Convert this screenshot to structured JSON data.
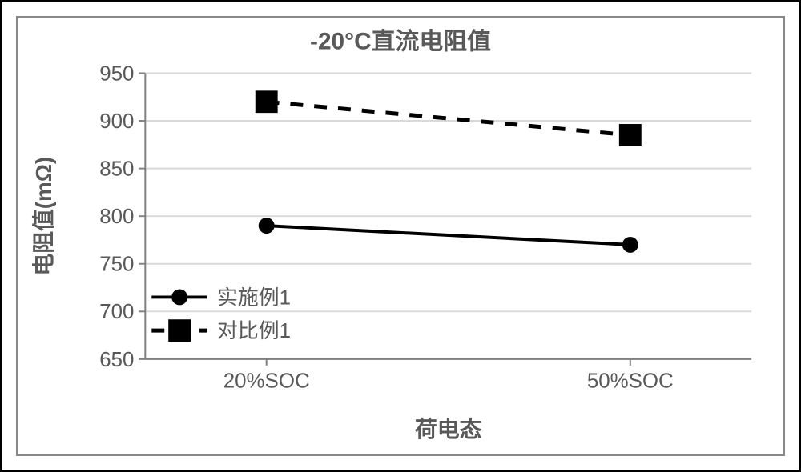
{
  "chart": {
    "type": "line",
    "title": "-20°C直流电阻值",
    "title_fontsize": 30,
    "title_color": "#595959",
    "xlabel": "荷电态",
    "ylabel": "电阻值(mΩ)",
    "label_fontsize": 28,
    "label_color": "#595959",
    "tick_fontsize": 26,
    "tick_color": "#595959",
    "background_color": "#ffffff",
    "grid_color": "#d9d9d9",
    "axis_color": "#808080",
    "plot_border_color": "#888888",
    "categories": [
      "20%SOC",
      "50%SOC"
    ],
    "ylim": [
      650,
      950
    ],
    "ytick_step": 50,
    "yticks": [
      650,
      700,
      750,
      800,
      850,
      900,
      950
    ],
    "series": [
      {
        "name": "实施例1",
        "values": [
          790,
          770
        ],
        "color": "#000000",
        "marker": "circle",
        "marker_size": 10,
        "line_width": 4,
        "dash": "solid"
      },
      {
        "name": "对比例1",
        "values": [
          920,
          885
        ],
        "color": "#000000",
        "marker": "square",
        "marker_size": 14,
        "line_width": 5,
        "dash": "16,14"
      }
    ],
    "legend": {
      "position": "inside-lower-left",
      "fontsize": 26,
      "text_color": "#595959"
    }
  }
}
